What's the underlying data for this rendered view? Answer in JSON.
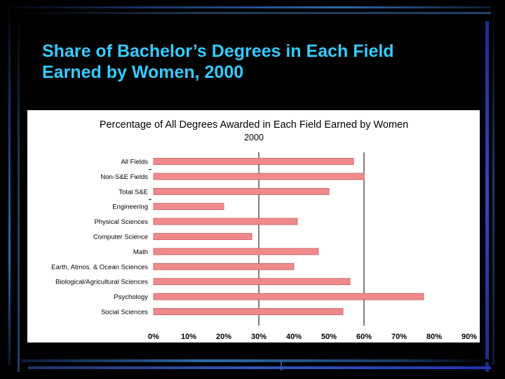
{
  "slide": {
    "title": "Share of Bachelor’s Degrees in Each Field\nEarned by Women, 2000"
  },
  "colors": {
    "background": "#000000",
    "title": "#33ccff",
    "bar_fill": "#f08a8a",
    "bar_stroke": "#c85a5a",
    "chart_background": "#ffffff"
  },
  "chart_data": {
    "type": "bar",
    "orientation": "horizontal",
    "title": "Percentage of All Degrees Awarded in Each Field Earned by Women",
    "subtitle": "2000",
    "categories": [
      "All Fields",
      "Non-S&E Fields",
      "Total S&E",
      "Engineering",
      "Physical Sciences",
      "Computer Science",
      "Math",
      "Earth, Atmos. & Ocean Sciences",
      "Biological/Agricultural Sciences",
      "Psychology",
      "Social Sciences"
    ],
    "values": [
      57,
      60,
      50,
      20,
      41,
      28,
      47,
      40,
      56,
      77,
      54
    ],
    "unit": "%",
    "xlim": [
      0,
      90
    ],
    "xticks": [
      "0%",
      "10%",
      "20%",
      "30%",
      "40%",
      "50%",
      "60%",
      "70%",
      "80%",
      "90%"
    ],
    "reference_lines": [
      30,
      60
    ],
    "legend": "none",
    "grid": false
  }
}
